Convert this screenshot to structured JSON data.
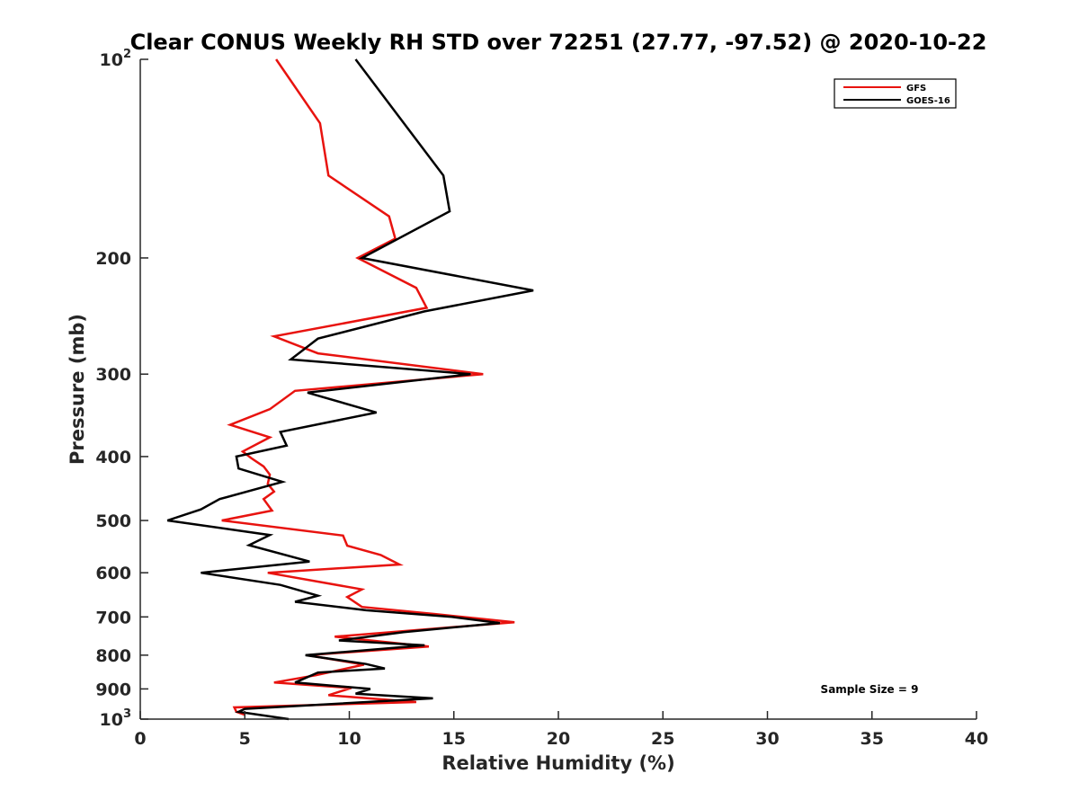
{
  "chart_data": {
    "type": "line",
    "title": "Clear CONUS Weekly RH STD over 72251 (27.77, -97.52) @ 2020-10-22",
    "xlabel": "Relative Humidity (%)",
    "ylabel": "Pressure (mb)",
    "xlim": [
      0,
      40
    ],
    "ylim": [
      100,
      1000
    ],
    "y_scale": "log",
    "y_reversed": true,
    "grid": false,
    "legend_position": "top-right",
    "annotation": "Sample Size = 9",
    "x_ticks": [
      {
        "value": 0,
        "label": "0"
      },
      {
        "value": 5,
        "label": "5"
      },
      {
        "value": 10,
        "label": "10"
      },
      {
        "value": 15,
        "label": "15"
      },
      {
        "value": 20,
        "label": "20"
      },
      {
        "value": 25,
        "label": "25"
      },
      {
        "value": 30,
        "label": "30"
      },
      {
        "value": 35,
        "label": "35"
      },
      {
        "value": 40,
        "label": "40"
      }
    ],
    "y_ticks": [
      {
        "value": 100,
        "label": "10",
        "sup": "2"
      },
      {
        "value": 200,
        "label": "200",
        "sup": ""
      },
      {
        "value": 300,
        "label": "300",
        "sup": ""
      },
      {
        "value": 400,
        "label": "400",
        "sup": ""
      },
      {
        "value": 500,
        "label": "500",
        "sup": ""
      },
      {
        "value": 600,
        "label": "600",
        "sup": ""
      },
      {
        "value": 700,
        "label": "700",
        "sup": ""
      },
      {
        "value": 800,
        "label": "800",
        "sup": ""
      },
      {
        "value": 900,
        "label": "900",
        "sup": ""
      },
      {
        "value": 1000,
        "label": "10",
        "sup": "3"
      }
    ],
    "series": [
      {
        "name": "GFS",
        "color": "#e8130f",
        "points": [
          {
            "x": 6.5,
            "y": 100
          },
          {
            "x": 8.6,
            "y": 125
          },
          {
            "x": 9.0,
            "y": 150
          },
          {
            "x": 11.9,
            "y": 173
          },
          {
            "x": 12.2,
            "y": 187
          },
          {
            "x": 10.4,
            "y": 200
          },
          {
            "x": 13.2,
            "y": 222
          },
          {
            "x": 13.7,
            "y": 238
          },
          {
            "x": 6.4,
            "y": 263
          },
          {
            "x": 8.5,
            "y": 279
          },
          {
            "x": 16.4,
            "y": 300
          },
          {
            "x": 7.4,
            "y": 318
          },
          {
            "x": 6.2,
            "y": 339
          },
          {
            "x": 4.3,
            "y": 358
          },
          {
            "x": 6.2,
            "y": 374
          },
          {
            "x": 4.9,
            "y": 393
          },
          {
            "x": 5.3,
            "y": 402
          },
          {
            "x": 5.9,
            "y": 414
          },
          {
            "x": 6.2,
            "y": 426
          },
          {
            "x": 6.1,
            "y": 440
          },
          {
            "x": 6.4,
            "y": 452
          },
          {
            "x": 5.9,
            "y": 464
          },
          {
            "x": 6.3,
            "y": 483
          },
          {
            "x": 3.9,
            "y": 500
          },
          {
            "x": 9.7,
            "y": 527
          },
          {
            "x": 9.9,
            "y": 546
          },
          {
            "x": 11.5,
            "y": 564
          },
          {
            "x": 12.4,
            "y": 583
          },
          {
            "x": 6.1,
            "y": 600
          },
          {
            "x": 10.6,
            "y": 636
          },
          {
            "x": 9.9,
            "y": 653
          },
          {
            "x": 10.6,
            "y": 676
          },
          {
            "x": 14.1,
            "y": 693
          },
          {
            "x": 17.9,
            "y": 713
          },
          {
            "x": 9.3,
            "y": 750
          },
          {
            "x": 13.8,
            "y": 776
          },
          {
            "x": 8.0,
            "y": 800
          },
          {
            "x": 10.7,
            "y": 827
          },
          {
            "x": 8.4,
            "y": 858
          },
          {
            "x": 6.4,
            "y": 880
          },
          {
            "x": 10.1,
            "y": 897
          },
          {
            "x": 9.0,
            "y": 920
          },
          {
            "x": 13.2,
            "y": 942
          },
          {
            "x": 4.5,
            "y": 960
          },
          {
            "x": 4.6,
            "y": 975
          },
          {
            "x": 5.0,
            "y": 985
          }
        ]
      },
      {
        "name": "GOES-16",
        "color": "#000000",
        "points": [
          {
            "x": 10.3,
            "y": 100
          },
          {
            "x": 14.5,
            "y": 150
          },
          {
            "x": 14.8,
            "y": 170
          },
          {
            "x": 10.6,
            "y": 200
          },
          {
            "x": 18.8,
            "y": 224
          },
          {
            "x": 13.6,
            "y": 241
          },
          {
            "x": 8.5,
            "y": 265
          },
          {
            "x": 7.2,
            "y": 285
          },
          {
            "x": 15.8,
            "y": 300
          },
          {
            "x": 8.0,
            "y": 320
          },
          {
            "x": 11.3,
            "y": 343
          },
          {
            "x": 6.7,
            "y": 367
          },
          {
            "x": 7.0,
            "y": 385
          },
          {
            "x": 4.6,
            "y": 400
          },
          {
            "x": 4.7,
            "y": 417
          },
          {
            "x": 6.8,
            "y": 437
          },
          {
            "x": 3.8,
            "y": 464
          },
          {
            "x": 2.9,
            "y": 481
          },
          {
            "x": 1.3,
            "y": 500
          },
          {
            "x": 6.2,
            "y": 526
          },
          {
            "x": 5.2,
            "y": 545
          },
          {
            "x": 8.1,
            "y": 577
          },
          {
            "x": 2.9,
            "y": 600
          },
          {
            "x": 6.7,
            "y": 626
          },
          {
            "x": 8.5,
            "y": 650
          },
          {
            "x": 7.4,
            "y": 664
          },
          {
            "x": 10.8,
            "y": 684
          },
          {
            "x": 14.9,
            "y": 700
          },
          {
            "x": 17.2,
            "y": 715
          },
          {
            "x": 12.6,
            "y": 738
          },
          {
            "x": 9.5,
            "y": 760
          },
          {
            "x": 13.6,
            "y": 773
          },
          {
            "x": 7.9,
            "y": 800
          },
          {
            "x": 10.8,
            "y": 825
          },
          {
            "x": 11.7,
            "y": 838
          },
          {
            "x": 8.5,
            "y": 850
          },
          {
            "x": 7.4,
            "y": 880
          },
          {
            "x": 11.0,
            "y": 900
          },
          {
            "x": 10.3,
            "y": 915
          },
          {
            "x": 14.0,
            "y": 930
          },
          {
            "x": 5.0,
            "y": 965
          },
          {
            "x": 4.7,
            "y": 975
          },
          {
            "x": 7.1,
            "y": 1000
          }
        ]
      }
    ]
  }
}
